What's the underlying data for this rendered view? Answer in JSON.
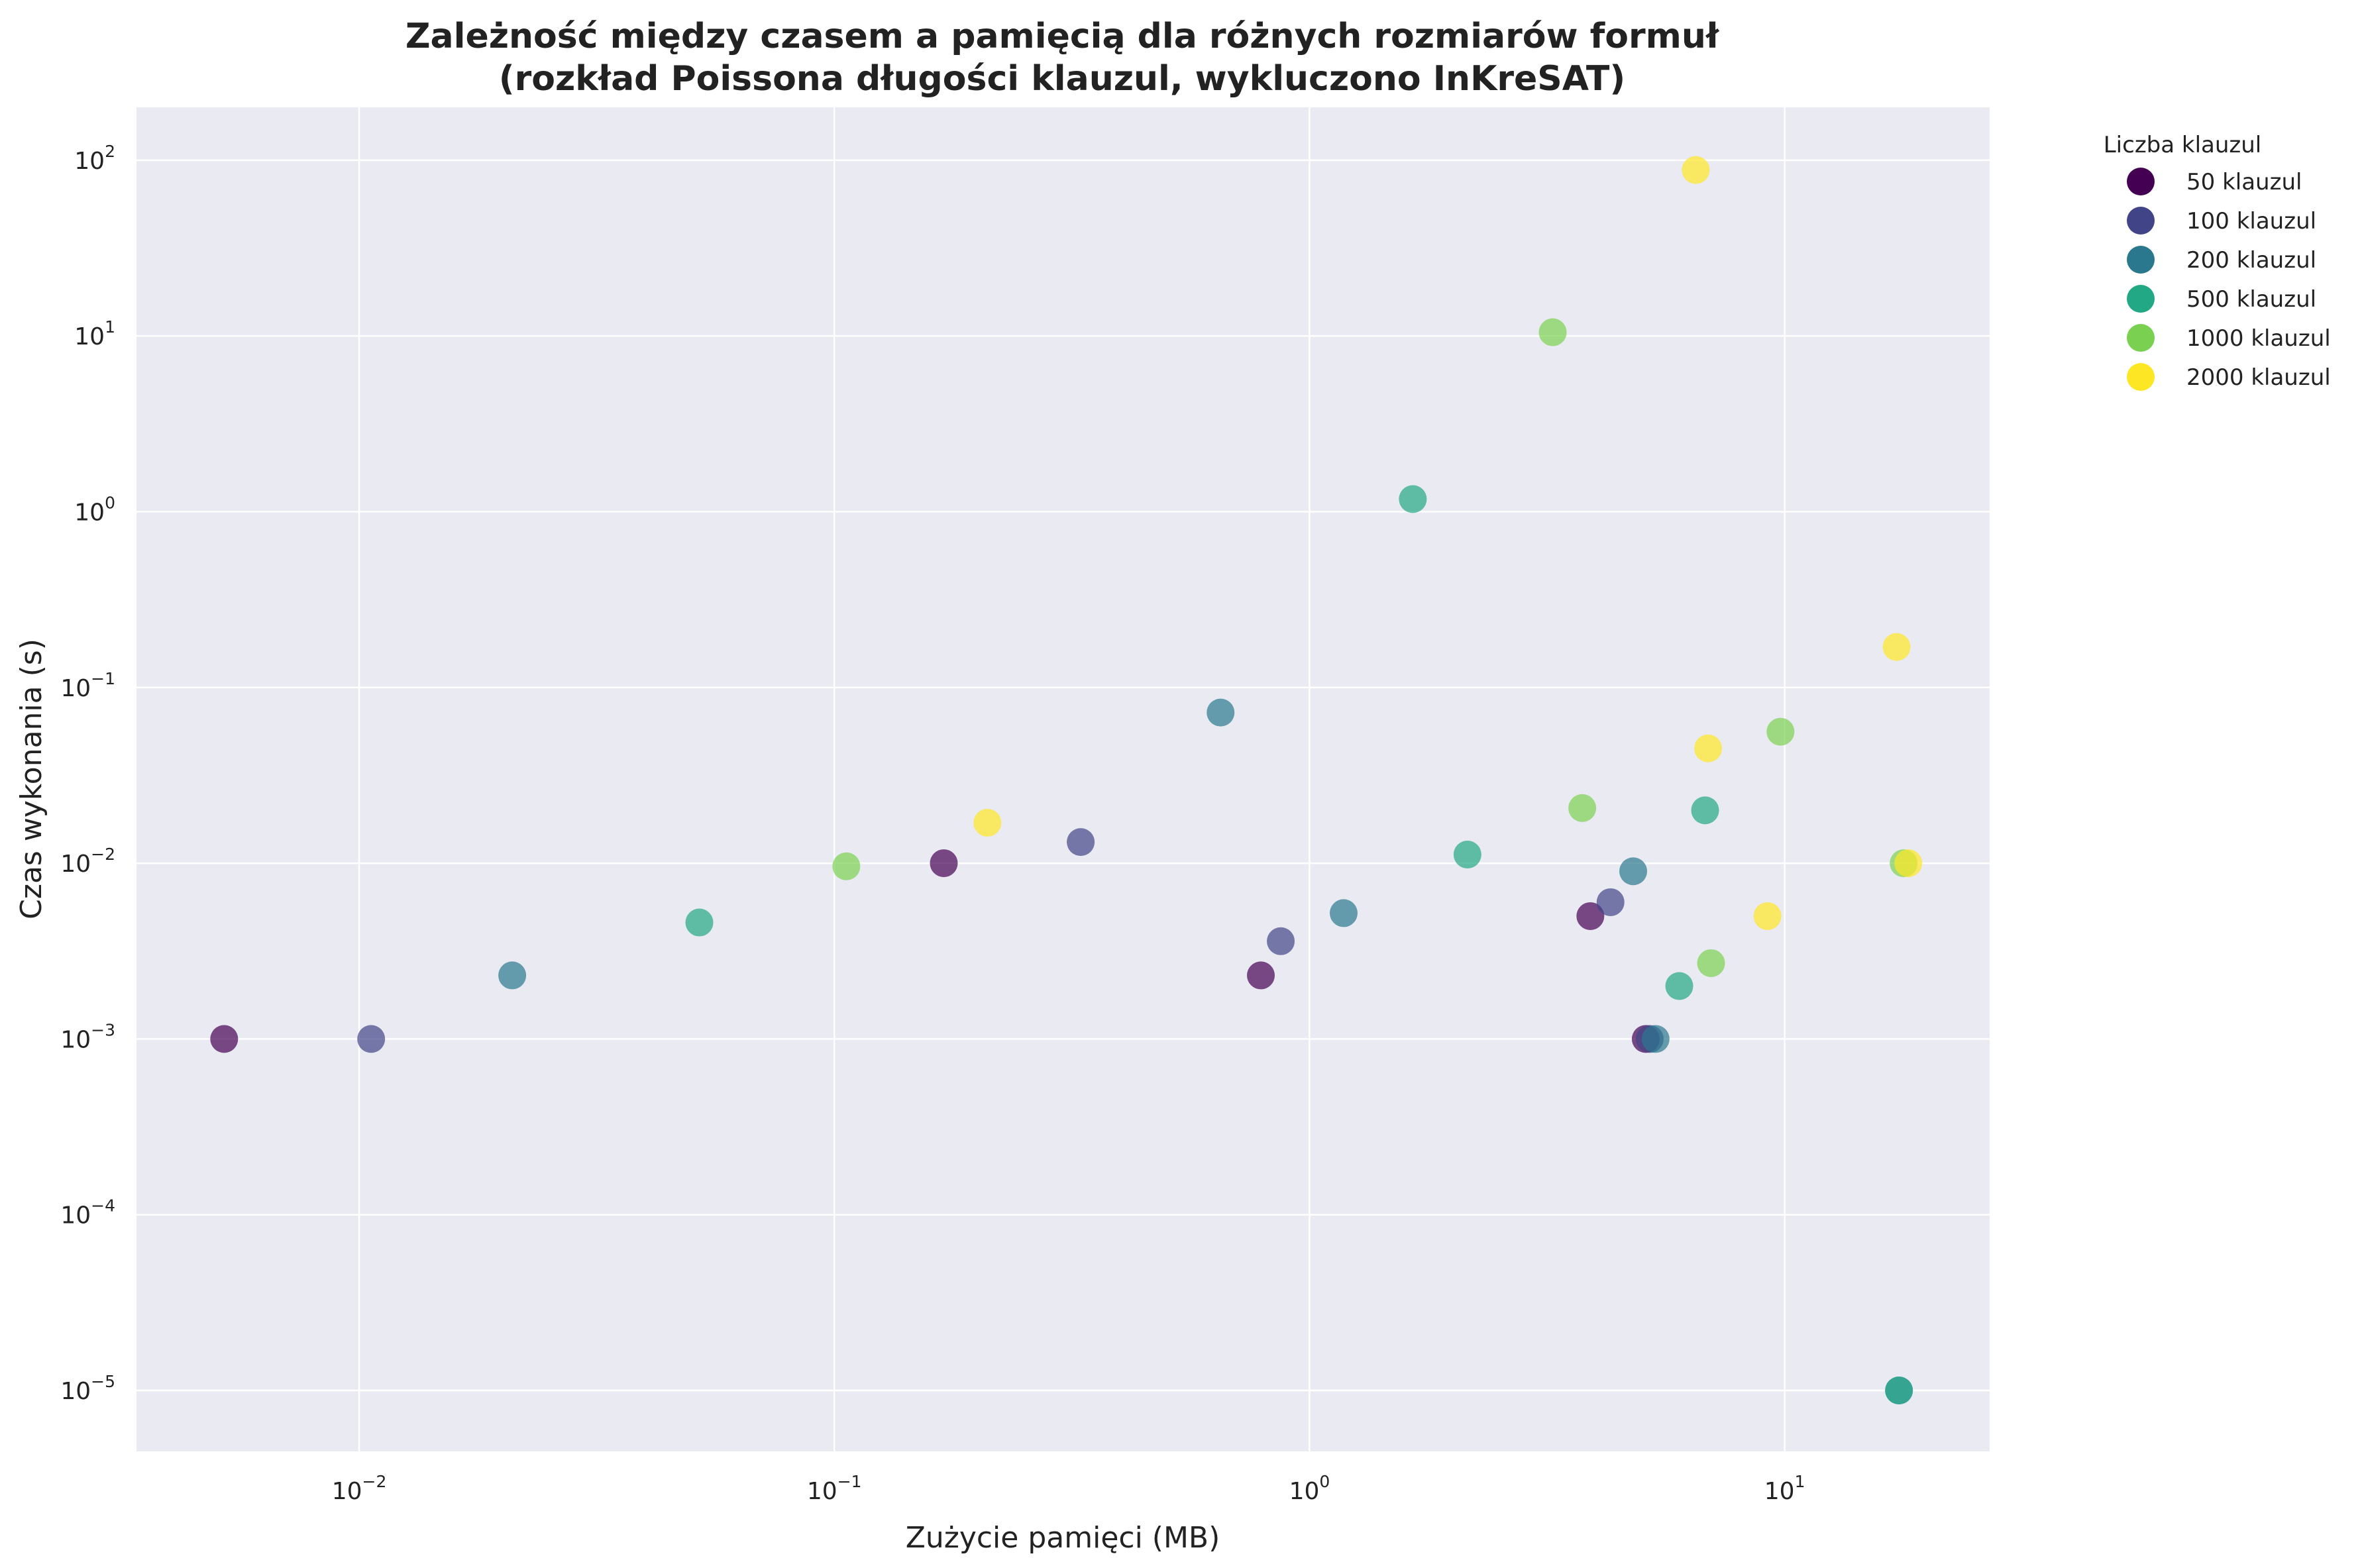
{
  "chart_data": {
    "type": "scatter",
    "title_lines": [
      "Zależność między czasem a pamięcią dla różnych rozmiarów formuł",
      "(rozkład Poissona długości klauzul, wykluczono InKreSAT)"
    ],
    "xlabel": "Zużycie pamięci (MB)",
    "ylabel": "Czas wykonania (s)",
    "xscale": "log",
    "yscale": "log",
    "xlim": [
      0.0034,
      27
    ],
    "ylim": [
      4.5e-06,
      200
    ],
    "xticks": [
      {
        "base": "10",
        "exp": "−2",
        "value": 0.01
      },
      {
        "base": "10",
        "exp": "−1",
        "value": 0.1
      },
      {
        "base": "10",
        "exp": "0",
        "value": 1
      },
      {
        "base": "10",
        "exp": "1",
        "value": 10
      }
    ],
    "yticks": [
      {
        "base": "10",
        "exp": "−5",
        "value": 1e-05
      },
      {
        "base": "10",
        "exp": "−4",
        "value": 0.0001
      },
      {
        "base": "10",
        "exp": "−3",
        "value": 0.001
      },
      {
        "base": "10",
        "exp": "−2",
        "value": 0.01
      },
      {
        "base": "10",
        "exp": "−1",
        "value": 0.1
      },
      {
        "base": "10",
        "exp": "0",
        "value": 1
      },
      {
        "base": "10",
        "exp": "1",
        "value": 10
      },
      {
        "base": "10",
        "exp": "2",
        "value": 100
      }
    ],
    "grid": true,
    "background": "#eaeaf2",
    "marker_alpha": 0.7,
    "legend": {
      "title": "Liczba klauzul",
      "placement": "outside-right-top"
    },
    "series": [
      {
        "name": "50 klauzul",
        "color": "#440154",
        "points": [
          {
            "x": 0.0052,
            "y": 0.001
          },
          {
            "x": 0.17,
            "y": 0.01
          },
          {
            "x": 0.79,
            "y": 0.0023
          },
          {
            "x": 3.9,
            "y": 0.005
          },
          {
            "x": 5.1,
            "y": 0.001
          }
        ]
      },
      {
        "name": "100 klauzul",
        "color": "#414487",
        "points": [
          {
            "x": 0.0106,
            "y": 0.001
          },
          {
            "x": 0.33,
            "y": 0.0132
          },
          {
            "x": 0.87,
            "y": 0.0036
          },
          {
            "x": 4.3,
            "y": 0.006
          },
          {
            "x": 5.2,
            "y": 0.001
          }
        ]
      },
      {
        "name": "200 klauzul",
        "color": "#2a788e",
        "points": [
          {
            "x": 0.021,
            "y": 0.0023
          },
          {
            "x": 0.65,
            "y": 0.072
          },
          {
            "x": 1.18,
            "y": 0.0052
          },
          {
            "x": 4.8,
            "y": 0.009
          },
          {
            "x": 5.35,
            "y": 0.001
          },
          {
            "x": 17.4,
            "y": 1e-05
          }
        ]
      },
      {
        "name": "500 klauzul",
        "color": "#22a884",
        "points": [
          {
            "x": 0.052,
            "y": 0.0046
          },
          {
            "x": 1.65,
            "y": 1.18
          },
          {
            "x": 2.15,
            "y": 0.0112
          },
          {
            "x": 6.0,
            "y": 0.002
          },
          {
            "x": 6.8,
            "y": 0.02
          },
          {
            "x": 17.4,
            "y": 1e-05
          }
        ]
      },
      {
        "name": "1000 klauzul",
        "color": "#7ad151",
        "points": [
          {
            "x": 0.106,
            "y": 0.0096
          },
          {
            "x": 3.25,
            "y": 10.5
          },
          {
            "x": 3.75,
            "y": 0.0206
          },
          {
            "x": 7.0,
            "y": 0.0027
          },
          {
            "x": 9.8,
            "y": 0.056
          },
          {
            "x": 17.8,
            "y": 0.01
          }
        ]
      },
      {
        "name": "2000 klauzul",
        "color": "#fde725",
        "points": [
          {
            "x": 0.21,
            "y": 0.017
          },
          {
            "x": 6.5,
            "y": 88
          },
          {
            "x": 6.9,
            "y": 0.045
          },
          {
            "x": 9.2,
            "y": 0.005
          },
          {
            "x": 17.2,
            "y": 0.17
          },
          {
            "x": 18.2,
            "y": 0.01
          }
        ]
      }
    ]
  }
}
